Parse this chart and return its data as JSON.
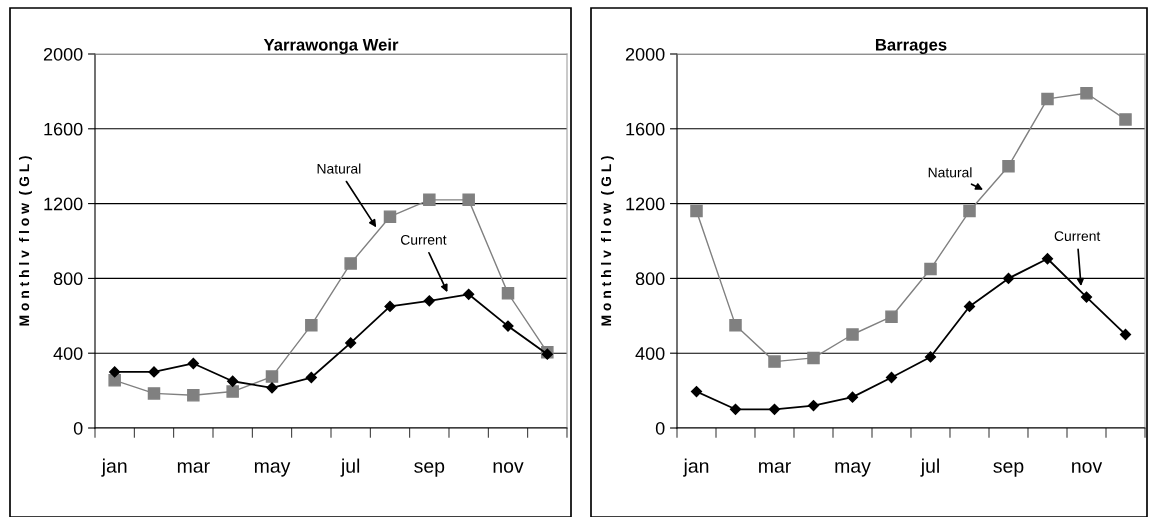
{
  "chart_data": [
    {
      "type": "line",
      "title": "Yarrawonga Weir",
      "ylabel": "M o n t h l v  f l o w  ( G L )",
      "categories": [
        "jan",
        null,
        "mar",
        null,
        "may",
        null,
        "jul",
        null,
        "sep",
        null,
        "nov",
        null
      ],
      "ylim": [
        0,
        2000
      ],
      "yticks": [
        0,
        400,
        800,
        1200,
        1600,
        2000
      ],
      "grid": "y",
      "legend": false,
      "series": [
        {
          "name": "Natural",
          "color": "#808080",
          "marker": "square",
          "values": [
            255,
            185,
            175,
            195,
            275,
            550,
            880,
            1130,
            1220,
            1220,
            720,
            405
          ]
        },
        {
          "name": "Current",
          "color": "#000000",
          "marker": "diamond",
          "values": [
            300,
            300,
            345,
            250,
            215,
            270,
            455,
            650,
            680,
            715,
            545,
            395
          ]
        }
      ]
    },
    {
      "type": "line",
      "title": "Barrages",
      "ylabel": "M o n t h l v  f l o w  ( G L )",
      "categories": [
        "jan",
        null,
        "mar",
        null,
        "may",
        null,
        "jul",
        null,
        "sep",
        null,
        "nov",
        null
      ],
      "ylim": [
        0,
        2000
      ],
      "yticks": [
        0,
        400,
        800,
        1200,
        1600,
        2000
      ],
      "grid": "y",
      "legend": false,
      "series": [
        {
          "name": "Natural",
          "color": "#808080",
          "marker": "square",
          "values": [
            1160,
            550,
            355,
            375,
            500,
            595,
            850,
            1160,
            1400,
            1760,
            1790,
            1650
          ]
        },
        {
          "name": "Current",
          "color": "#000000",
          "marker": "diamond",
          "values": [
            195,
            100,
            100,
            120,
            165,
            270,
            380,
            650,
            800,
            905,
            700,
            500
          ]
        }
      ]
    }
  ]
}
